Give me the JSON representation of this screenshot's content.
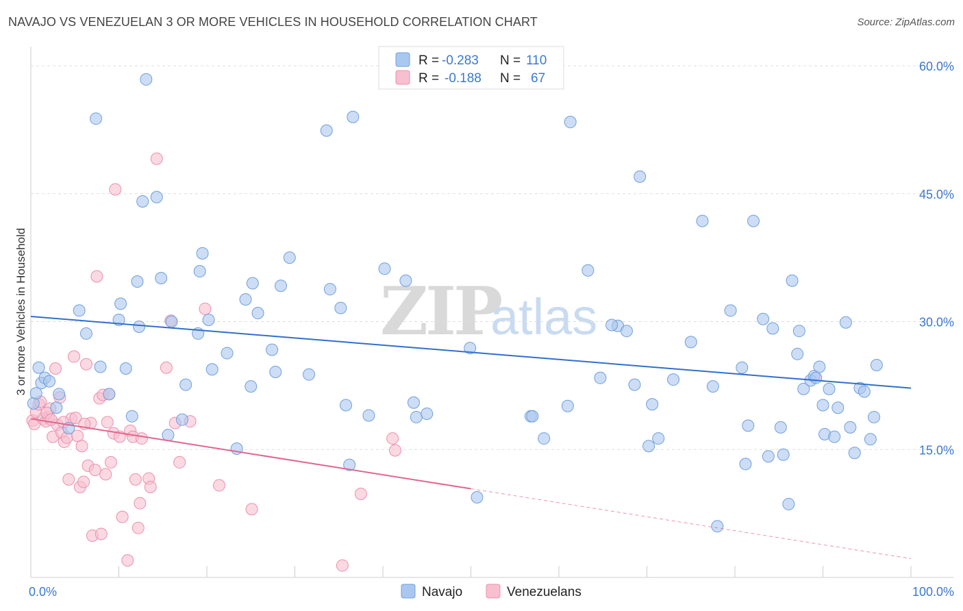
{
  "title": "NAVAJO VS VENEZUELAN 3 OR MORE VEHICLES IN HOUSEHOLD CORRELATION CHART",
  "source": "Source: ZipAtlas.com",
  "watermark": {
    "zip": "ZIP",
    "atlas": "atlas"
  },
  "colors": {
    "navajo_fill": "#aac7ef",
    "navajo_stroke": "#6f9fdc",
    "navajo_line": "#2f6fcc",
    "venezuelan_fill": "#f7bfd0",
    "venezuelan_stroke": "#ec8fab",
    "venezuelan_line": "#e2648f",
    "tick_text": "#3a78d0",
    "grid": "#dddddd"
  },
  "legend": {
    "r_label": "R =",
    "n_label": "N =",
    "navajo_r": "-0.283",
    "navajo_n": "110",
    "venezuelan_r": "-0.188",
    "venezuelan_n": "67"
  },
  "chart_data": {
    "type": "scatter",
    "title": "NAVAJO VS VENEZUELAN 3 OR MORE VEHICLES IN HOUSEHOLD CORRELATION CHART",
    "xlabel": "",
    "ylabel": "3 or more Vehicles in Household",
    "xlim": [
      0,
      100
    ],
    "ylim": [
      0,
      60
    ],
    "x_tick_labels": [
      "0.0%",
      "100.0%"
    ],
    "y_ticks": [
      15,
      30,
      45,
      60
    ],
    "y_tick_labels": [
      "15.0%",
      "30.0%",
      "45.0%",
      "60.0%"
    ],
    "legend_position": "top-center",
    "series": [
      {
        "name": "Navajo",
        "r": -0.283,
        "n": 110,
        "trend": {
          "x": [
            0,
            100
          ],
          "y": [
            30.6,
            22.2
          ]
        },
        "points": [
          [
            0.3,
            20.4
          ],
          [
            0.6,
            21.6
          ],
          [
            0.9,
            24.6
          ],
          [
            1.2,
            22.8
          ],
          [
            1.6,
            23.4
          ],
          [
            2.1,
            23.0
          ],
          [
            2.9,
            19.9
          ],
          [
            3.2,
            21.5
          ],
          [
            4.3,
            17.5
          ],
          [
            5.5,
            31.3
          ],
          [
            6.3,
            28.6
          ],
          [
            7.4,
            53.8
          ],
          [
            7.9,
            24.7
          ],
          [
            8.9,
            21.5
          ],
          [
            10.0,
            30.2
          ],
          [
            10.2,
            32.1
          ],
          [
            10.8,
            24.5
          ],
          [
            11.5,
            18.9
          ],
          [
            12.1,
            34.7
          ],
          [
            12.3,
            29.4
          ],
          [
            12.7,
            44.1
          ],
          [
            13.1,
            58.4
          ],
          [
            14.3,
            44.6
          ],
          [
            14.8,
            35.1
          ],
          [
            15.6,
            16.7
          ],
          [
            16.0,
            30.0
          ],
          [
            17.2,
            18.5
          ],
          [
            17.6,
            22.6
          ],
          [
            19.0,
            28.6
          ],
          [
            19.2,
            35.9
          ],
          [
            19.5,
            38.0
          ],
          [
            20.2,
            30.2
          ],
          [
            20.6,
            24.4
          ],
          [
            22.3,
            26.3
          ],
          [
            23.4,
            15.1
          ],
          [
            24.4,
            32.6
          ],
          [
            25.0,
            22.4
          ],
          [
            25.2,
            34.5
          ],
          [
            25.8,
            31.0
          ],
          [
            27.4,
            26.7
          ],
          [
            27.8,
            24.1
          ],
          [
            28.4,
            34.2
          ],
          [
            29.4,
            37.5
          ],
          [
            31.6,
            23.8
          ],
          [
            33.6,
            52.4
          ],
          [
            34.0,
            33.8
          ],
          [
            35.2,
            31.6
          ],
          [
            35.8,
            20.2
          ],
          [
            36.2,
            13.2
          ],
          [
            36.6,
            54.0
          ],
          [
            38.4,
            19.0
          ],
          [
            40.2,
            36.2
          ],
          [
            42.6,
            34.8
          ],
          [
            43.5,
            20.5
          ],
          [
            43.8,
            18.8
          ],
          [
            49.9,
            26.9
          ],
          [
            50.7,
            9.4
          ],
          [
            56.8,
            18.9
          ],
          [
            58.3,
            16.3
          ],
          [
            61.0,
            20.1
          ],
          [
            61.3,
            53.4
          ],
          [
            63.3,
            36.0
          ],
          [
            64.7,
            23.4
          ],
          [
            66.7,
            29.5
          ],
          [
            67.7,
            28.9
          ],
          [
            68.6,
            22.6
          ],
          [
            69.2,
            47.0
          ],
          [
            70.2,
            15.4
          ],
          [
            70.6,
            20.3
          ],
          [
            71.3,
            16.3
          ],
          [
            73.0,
            23.2
          ],
          [
            75.0,
            27.6
          ],
          [
            76.3,
            41.8
          ],
          [
            77.5,
            22.4
          ],
          [
            78.0,
            6.0
          ],
          [
            79.5,
            31.3
          ],
          [
            80.8,
            24.6
          ],
          [
            81.2,
            13.3
          ],
          [
            81.5,
            17.8
          ],
          [
            82.1,
            41.8
          ],
          [
            83.2,
            30.3
          ],
          [
            83.8,
            14.2
          ],
          [
            84.3,
            29.2
          ],
          [
            85.2,
            17.6
          ],
          [
            85.5,
            14.4
          ],
          [
            86.1,
            8.6
          ],
          [
            86.5,
            34.8
          ],
          [
            87.1,
            26.2
          ],
          [
            87.3,
            28.9
          ],
          [
            87.8,
            22.1
          ],
          [
            88.6,
            23.1
          ],
          [
            89.0,
            23.6
          ],
          [
            89.2,
            23.4
          ],
          [
            89.6,
            24.7
          ],
          [
            90.0,
            20.2
          ],
          [
            90.2,
            16.8
          ],
          [
            90.7,
            22.1
          ],
          [
            91.3,
            16.5
          ],
          [
            91.7,
            19.9
          ],
          [
            92.6,
            29.9
          ],
          [
            93.1,
            17.6
          ],
          [
            93.6,
            14.6
          ],
          [
            94.2,
            22.2
          ],
          [
            94.7,
            21.8
          ],
          [
            95.4,
            16.2
          ],
          [
            95.8,
            18.8
          ],
          [
            96.1,
            24.9
          ],
          [
            66.0,
            29.6
          ],
          [
            57.0,
            18.9
          ],
          [
            45.0,
            19.2
          ]
        ]
      },
      {
        "name": "Venezuelans",
        "r": -0.188,
        "n": 67,
        "trend": {
          "x": [
            0,
            50
          ],
          "y": [
            18.6,
            10.4
          ]
        },
        "trend_dashed": {
          "x": [
            50,
            100
          ],
          "y": [
            10.4,
            2.2
          ]
        },
        "points": [
          [
            0.2,
            18.4
          ],
          [
            0.4,
            18.0
          ],
          [
            0.6,
            19.4
          ],
          [
            0.9,
            20.3
          ],
          [
            1.1,
            20.6
          ],
          [
            1.4,
            18.6
          ],
          [
            1.7,
            18.3
          ],
          [
            2.0,
            18.8
          ],
          [
            2.2,
            19.8
          ],
          [
            2.5,
            16.5
          ],
          [
            2.8,
            24.5
          ],
          [
            3.0,
            17.9
          ],
          [
            3.3,
            21.1
          ],
          [
            3.5,
            17.0
          ],
          [
            3.8,
            15.9
          ],
          [
            4.1,
            16.4
          ],
          [
            4.3,
            11.5
          ],
          [
            4.6,
            18.6
          ],
          [
            4.9,
            25.9
          ],
          [
            5.1,
            18.7
          ],
          [
            5.3,
            16.6
          ],
          [
            5.6,
            10.6
          ],
          [
            5.8,
            15.4
          ],
          [
            6.0,
            11.2
          ],
          [
            6.3,
            25.0
          ],
          [
            6.5,
            13.1
          ],
          [
            6.8,
            18.1
          ],
          [
            7.0,
            4.9
          ],
          [
            7.3,
            12.6
          ],
          [
            7.5,
            35.3
          ],
          [
            7.8,
            21.0
          ],
          [
            8.0,
            5.1
          ],
          [
            8.2,
            21.4
          ],
          [
            8.5,
            12.1
          ],
          [
            8.7,
            18.2
          ],
          [
            8.9,
            21.5
          ],
          [
            9.1,
            13.5
          ],
          [
            9.4,
            16.9
          ],
          [
            9.6,
            45.5
          ],
          [
            10.1,
            16.5
          ],
          [
            10.4,
            7.1
          ],
          [
            11.0,
            2.0
          ],
          [
            11.3,
            17.2
          ],
          [
            11.6,
            16.5
          ],
          [
            11.9,
            11.5
          ],
          [
            12.2,
            5.8
          ],
          [
            12.4,
            8.7
          ],
          [
            12.6,
            16.3
          ],
          [
            13.4,
            11.6
          ],
          [
            13.6,
            10.6
          ],
          [
            14.3,
            49.1
          ],
          [
            15.4,
            24.6
          ],
          [
            15.9,
            30.1
          ],
          [
            16.4,
            18.1
          ],
          [
            16.9,
            13.5
          ],
          [
            18.1,
            18.3
          ],
          [
            19.8,
            31.5
          ],
          [
            21.4,
            10.8
          ],
          [
            25.1,
            8.0
          ],
          [
            35.4,
            1.4
          ],
          [
            37.5,
            9.8
          ],
          [
            41.1,
            16.3
          ],
          [
            41.4,
            14.9
          ],
          [
            1.8,
            19.3
          ],
          [
            2.3,
            18.5
          ],
          [
            3.7,
            18.2
          ],
          [
            6.1,
            18.0
          ]
        ]
      }
    ]
  },
  "bottom_legend": [
    "Navajo",
    "Venezuelans"
  ]
}
